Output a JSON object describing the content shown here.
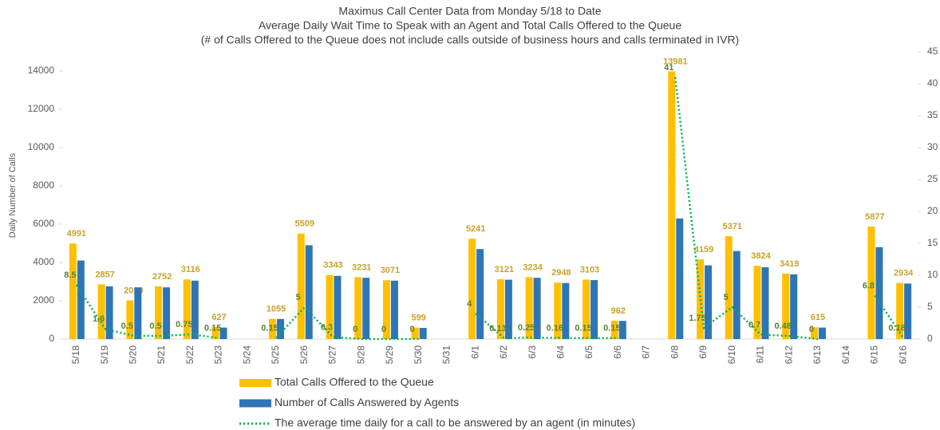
{
  "chart_data": {
    "type": "bar",
    "title": "Maximus Call Center Data from Monday 5/18 to Date",
    "subtitle": "Average Daily Wait Time to Speak with an Agent and Total Calls Offered to the Queue",
    "note": "(# of Calls Offered to the Queue does not include calls outside of business hours and calls terminated in IVR)",
    "y_label": "Daily Number of Calls",
    "categories": [
      "5/18",
      "5/19",
      "5/20",
      "5/21",
      "5/22",
      "5/23",
      "5/24",
      "5/25",
      "5/26",
      "5/27",
      "5/28",
      "5/29",
      "5/30",
      "5/31",
      "6/1",
      "6/2",
      "6/3",
      "6/4",
      "6/5",
      "6/6",
      "6/7",
      "6/8",
      "6/9",
      "6/10",
      "6/11",
      "6/12",
      "6/13",
      "6/14",
      "6/15",
      "6/16"
    ],
    "series": [
      {
        "name": "Total Calls Offered to the Queue",
        "color": "#FFC000",
        "label_color": "#C9A227",
        "values": [
          4991,
          2857,
          2020,
          2752,
          3116,
          627,
          null,
          1055,
          5509,
          3343,
          3231,
          3071,
          599,
          null,
          5241,
          3121,
          3234,
          2948,
          3103,
          962,
          null,
          13981,
          4159,
          5371,
          3824,
          3419,
          615,
          null,
          5877,
          2934
        ]
      },
      {
        "name": "Number of Calls Answered by Agents",
        "color": "#2E75B6",
        "values": [
          4100,
          2750,
          2700,
          2700,
          3050,
          600,
          null,
          1050,
          4900,
          3300,
          3200,
          3050,
          580,
          null,
          4700,
          3100,
          3200,
          2930,
          3080,
          950,
          null,
          6300,
          3850,
          4600,
          3750,
          3380,
          600,
          null,
          4800,
          2900
        ]
      },
      {
        "name": "The average time daily for a call to be answered by an agent (in minutes)",
        "color": "#00B050",
        "label_color": "#548235",
        "type": "line",
        "axis": "y2",
        "values": [
          8.5,
          1.6,
          0.5,
          0.5,
          0.75,
          0.15,
          null,
          0.15,
          5,
          0.3,
          0,
          0,
          0,
          null,
          4,
          0.13,
          0.25,
          0.16,
          0.15,
          0.15,
          null,
          41,
          1.75,
          5,
          0.7,
          0.48,
          0,
          null,
          6.8,
          0.18
        ]
      }
    ],
    "ylim": [
      0,
      15000
    ],
    "yticks": [
      0,
      2000,
      4000,
      6000,
      8000,
      10000,
      12000,
      14000
    ],
    "y2lim": [
      0,
      45
    ],
    "y2ticks": [
      0,
      5,
      10,
      15,
      20,
      25,
      30,
      35,
      40,
      45
    ],
    "legend": "bottom"
  }
}
